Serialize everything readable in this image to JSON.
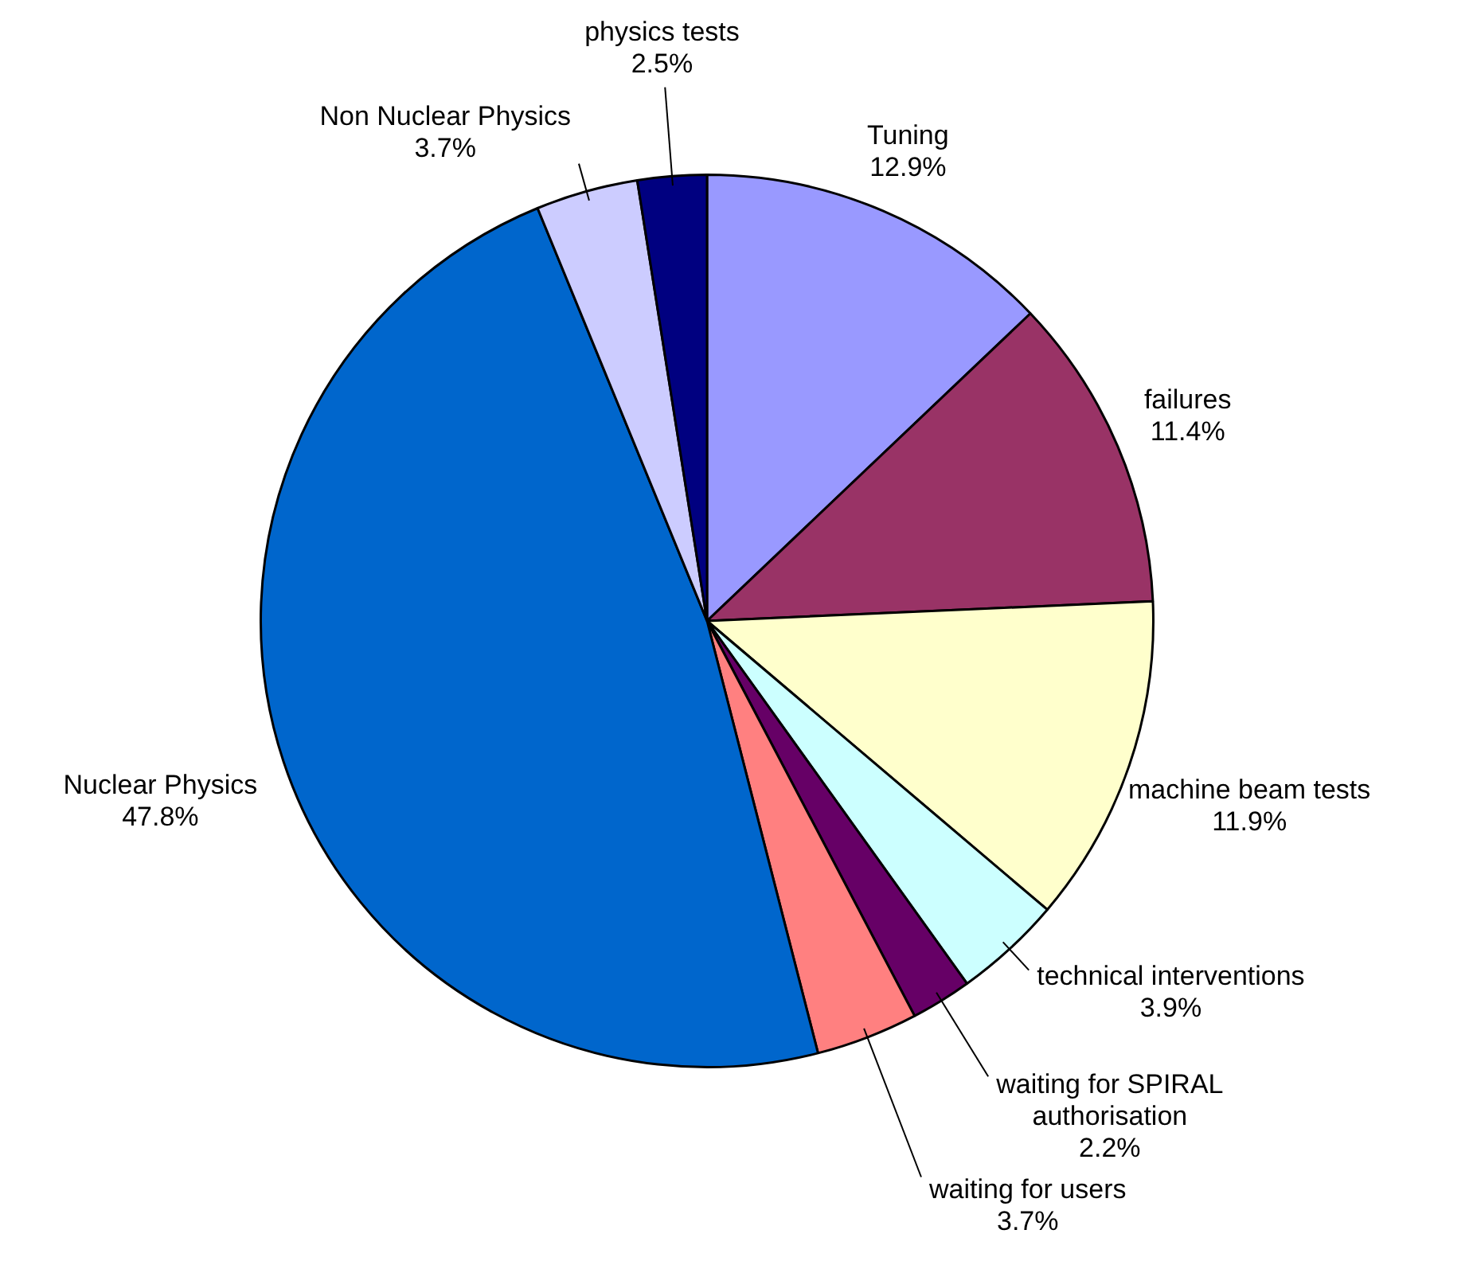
{
  "chart_data": {
    "type": "pie",
    "categories": [
      "Tuning",
      "failures",
      "machine beam tests",
      "technical interventions",
      "waiting for SPIRAL authorisation",
      "waiting for users",
      "Nuclear Physics",
      "Non Nuclear Physics",
      "physics tests"
    ],
    "values": [
      12.9,
      11.4,
      11.9,
      3.9,
      2.2,
      3.7,
      47.8,
      3.7,
      2.5
    ],
    "value_labels": [
      "12.9%",
      "11.4%",
      "11.9%",
      "3.9%",
      "2.2%",
      "3.7%",
      "47.8%",
      "3.7%",
      "2.5%"
    ],
    "colors": [
      "#9999ff",
      "#993366",
      "#ffffcc",
      "#ccffff",
      "#660066",
      "#ff8080",
      "#0066cc",
      "#ccccff",
      "#000080"
    ],
    "legend": false
  }
}
